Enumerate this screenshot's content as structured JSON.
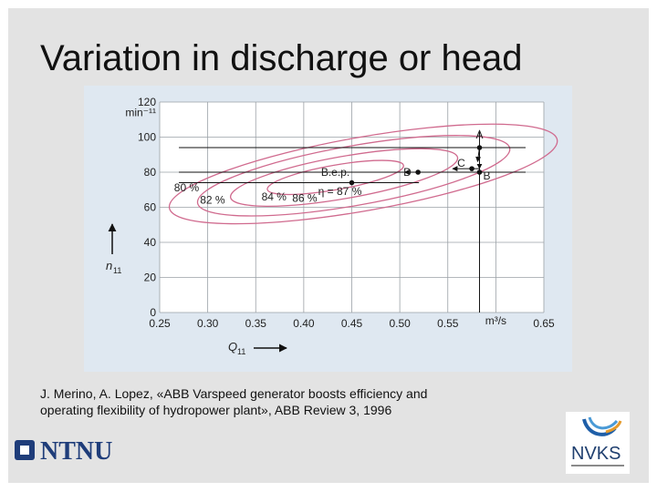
{
  "slide": {
    "title": "Variation in discharge or head",
    "citation_line1": "J. Merino, A. Lopez, «ABB Varspeed generator boosts efficiency and",
    "citation_line2": "operating flexibility of hydropower plant», ABB Review 3, 1996",
    "logo_left_text": "NTNU",
    "logo_right_text": "NVKS"
  },
  "colors": {
    "contour": "#d06a8e",
    "grid": "#9aa0a6",
    "plot_bg": "#ffffff",
    "figure_bg": "#dfe8f1",
    "ntnu_blue": "#1f3d7a",
    "nvks_blue": "#1f5fa8",
    "nvks_orange": "#e59a2a"
  },
  "chart_data": {
    "type": "contour",
    "xlabel": "Q",
    "xlabel_sub": "11",
    "ylabel": "n",
    "ylabel_sub": "11",
    "ylabel_unit": "min⁻¹¹",
    "xunit": "m³/s",
    "xlim": [
      0.25,
      0.65
    ],
    "ylim": [
      0,
      120
    ],
    "x_ticks": [
      "0.25",
      "0.30",
      "0.35",
      "0.40",
      "0.45",
      "0.50",
      "0.55",
      "",
      "0.65"
    ],
    "x_tick_values": [
      0.25,
      0.3,
      0.35,
      0.4,
      0.45,
      0.5,
      0.55,
      0.6,
      0.65
    ],
    "y_ticks": [
      0,
      20,
      40,
      60,
      80,
      100,
      120
    ],
    "grid": true,
    "contours": [
      {
        "label": "80 %",
        "center": [
          0.462,
          79
        ],
        "half_x": 0.205,
        "half_y": 21,
        "tilt_deg": -10
      },
      {
        "label": "82 %",
        "center": [
          0.452,
          78
        ],
        "half_x": 0.165,
        "half_y": 17,
        "tilt_deg": -10
      },
      {
        "label": "84 %",
        "center": [
          0.442,
          77
        ],
        "half_x": 0.12,
        "half_y": 12,
        "tilt_deg": -10
      },
      {
        "label": "86 %",
        "center": [
          0.433,
          77
        ],
        "half_x": 0.072,
        "half_y": 7,
        "tilt_deg": -10
      }
    ],
    "contour_label_positions": [
      {
        "text": "80 %",
        "x": 0.265,
        "y": 69
      },
      {
        "text": "82 %",
        "x": 0.292,
        "y": 62
      },
      {
        "text": "84 %",
        "x": 0.356,
        "y": 64
      },
      {
        "text": "86 %",
        "x": 0.388,
        "y": 63
      }
    ],
    "points": [
      {
        "name": "A",
        "x": 0.583,
        "y": 94
      },
      {
        "name": "B",
        "x": 0.583,
        "y": 80
      },
      {
        "name": "C",
        "x": 0.575,
        "y": 82
      },
      {
        "name": "D",
        "x": 0.519,
        "y": 80
      },
      {
        "name": "B.e.p.",
        "x": 0.45,
        "y": 74
      }
    ],
    "bep_label": "B.e.p.",
    "eta_label": "η = 87 %",
    "horizontal_lines": [
      94,
      80,
      74
    ],
    "vertical_line_x": 0.583,
    "arrows": [
      {
        "from": [
          0.583,
          94
        ],
        "to": [
          0.583,
          82
        ]
      },
      {
        "from": [
          0.583,
          94
        ],
        "to": [
          0.581,
          86
        ]
      },
      {
        "from": [
          0.583,
          82
        ],
        "to": [
          0.555,
          82
        ]
      },
      {
        "from": [
          0.519,
          80
        ],
        "to": [
          0.505,
          80
        ]
      }
    ]
  }
}
